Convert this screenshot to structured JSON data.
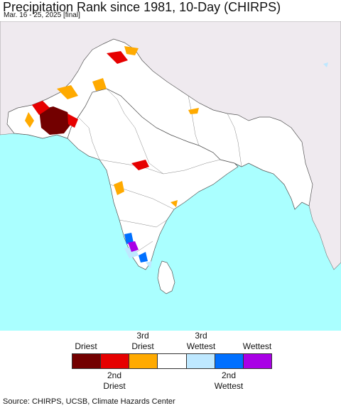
{
  "title": "Precipitation Rank since 1981, 10-Day (CHIRPS)",
  "subtitle": "Mar. 16 - 25, 2025 [final]",
  "legend": {
    "top_labels": [
      {
        "text_line1": "",
        "text_line2": "Driest"
      },
      {
        "text_line1": "3rd",
        "text_line2": "Driest"
      },
      {
        "text_line1": "3rd",
        "text_line2": "Wettest"
      },
      {
        "text_line1": "",
        "text_line2": "Wettest"
      }
    ],
    "bottom_labels": [
      {
        "text_line1": "2nd",
        "text_line2": "Driest"
      },
      {
        "text_line1": "2nd",
        "text_line2": "Wettest"
      }
    ],
    "colors": [
      "#730000",
      "#e60000",
      "#ffaa00",
      "#ffffff",
      "#bee8ff",
      "#0070ff",
      "#a900e6"
    ]
  },
  "map_colors": {
    "ocean": "#aaffff",
    "land_outside": "#efeaef",
    "land_inside": "#ffffff",
    "borders": "#555555"
  },
  "source": "Source: CHIRPS, UCSB, Climate Hazards Center"
}
